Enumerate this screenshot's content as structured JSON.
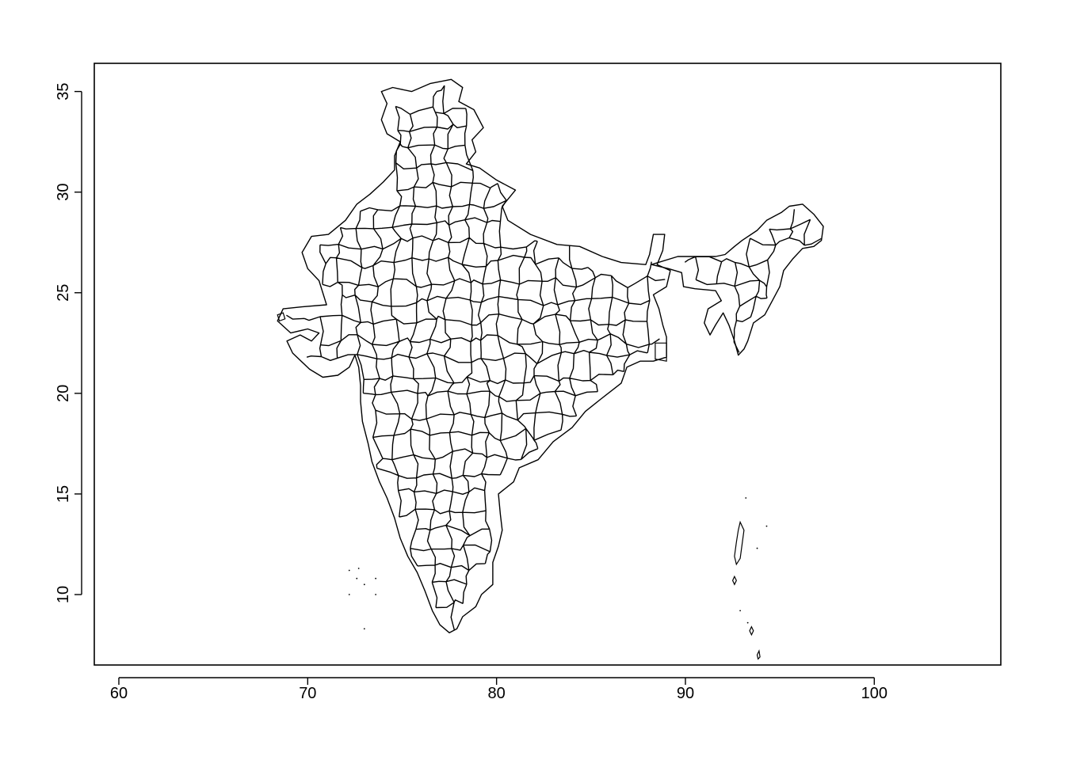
{
  "plot": {
    "frame_color": "#000000",
    "background": "#ffffff"
  },
  "axes": {
    "x": {
      "range": [
        58.7,
        106.7
      ],
      "ticks": [
        60,
        70,
        80,
        90,
        100
      ],
      "tick_labels": [
        "60",
        "70",
        "80",
        "90",
        "100"
      ]
    },
    "y": {
      "range": [
        6.5,
        36.4
      ],
      "ticks": [
        10,
        15,
        20,
        25,
        30,
        35
      ],
      "tick_labels": [
        "10",
        "15",
        "20",
        "25",
        "30",
        "35"
      ]
    }
  },
  "map": {
    "subject": "district boundaries of India",
    "line_color": "#000000",
    "fill": "none"
  }
}
